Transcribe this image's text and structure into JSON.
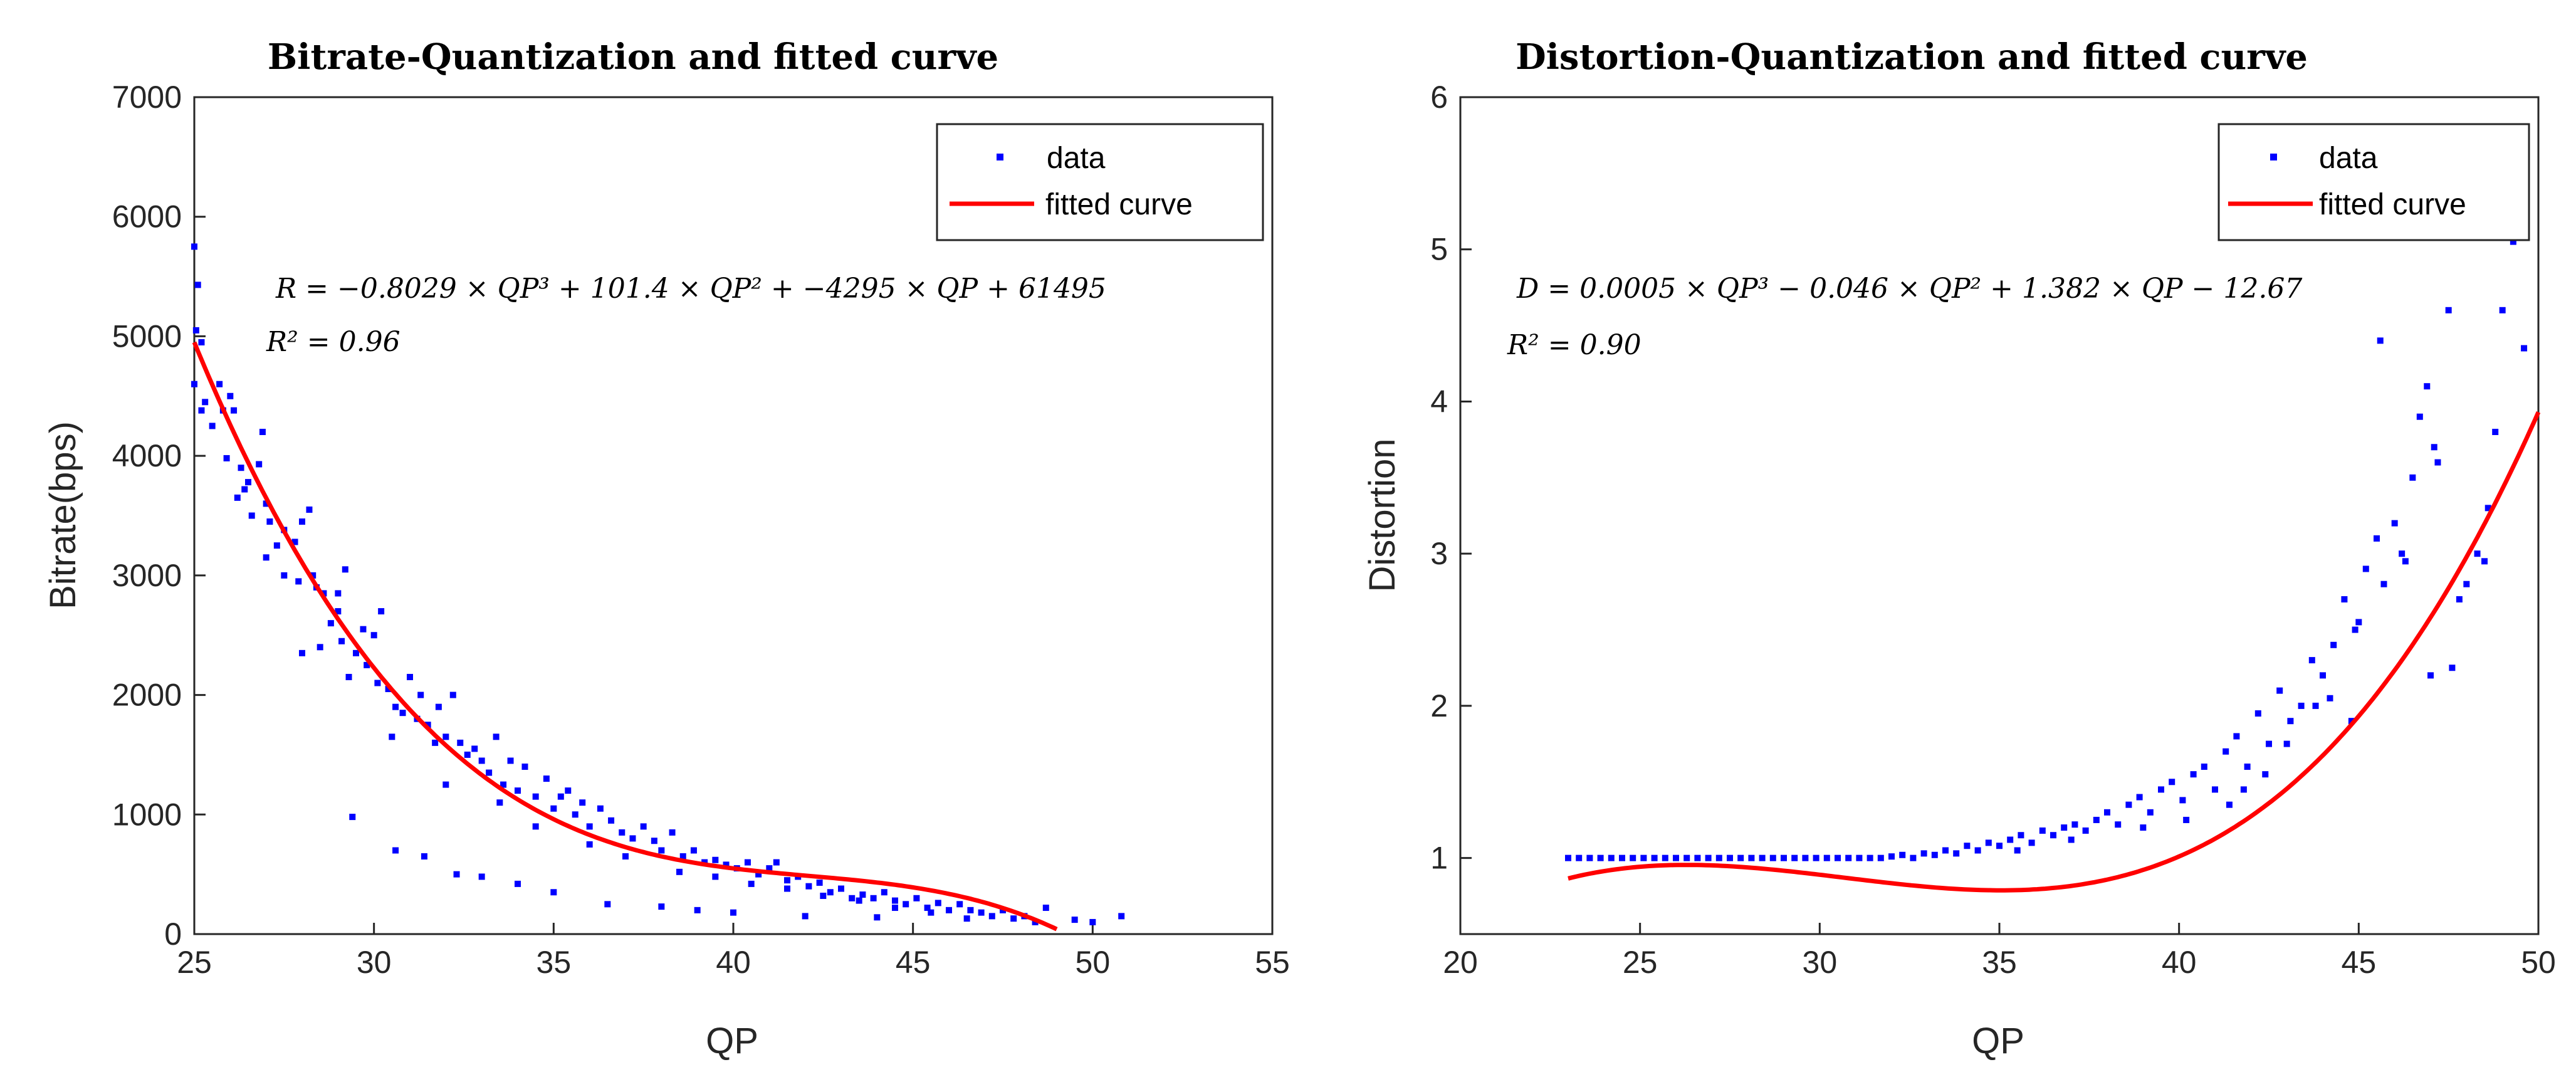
{
  "chart_data": [
    {
      "type": "scatter",
      "title": "Bitrate-Quantization and fitted curve",
      "xlabel": "QP",
      "ylabel": "Bitrate(bps)",
      "xlim": [
        25,
        55
      ],
      "ylim": [
        0,
        7000
      ],
      "xticks": [
        "25",
        "30",
        "35",
        "40",
        "45",
        "50",
        "55"
      ],
      "yticks": [
        "0",
        "1000",
        "2000",
        "3000",
        "4000",
        "5000",
        "6000",
        "7000"
      ],
      "legend": {
        "position": "top-right",
        "entries": [
          "data",
          "fitted curve"
        ]
      },
      "annotation_lines": [
        "R = −0.8029 × QP³ + 101.4 × QP² + −4295 × QP + 61495",
        "R² = 0.96"
      ],
      "series": [
        {
          "name": "data",
          "kind": "scatter",
          "color": "#0000ff",
          "points": [
            [
              25.0,
              5750
            ],
            [
              25.1,
              5430
            ],
            [
              25.05,
              5050
            ],
            [
              25.2,
              4950
            ],
            [
              25.0,
              4600
            ],
            [
              25.3,
              4450
            ],
            [
              25.2,
              4380
            ],
            [
              25.5,
              4250
            ],
            [
              25.7,
              4600
            ],
            [
              25.8,
              4380
            ],
            [
              26.0,
              4500
            ],
            [
              26.1,
              4380
            ],
            [
              25.9,
              3980
            ],
            [
              26.3,
              3900
            ],
            [
              26.4,
              3720
            ],
            [
              26.2,
              3650
            ],
            [
              26.5,
              3780
            ],
            [
              26.8,
              3930
            ],
            [
              27.0,
              3600
            ],
            [
              26.9,
              4200
            ],
            [
              27.1,
              3450
            ],
            [
              27.3,
              3250
            ],
            [
              27.0,
              3150
            ],
            [
              27.5,
              3380
            ],
            [
              27.8,
              3280
            ],
            [
              28.0,
              3450
            ],
            [
              28.2,
              3550
            ],
            [
              27.9,
              2950
            ],
            [
              28.4,
              2900
            ],
            [
              28.6,
              2850
            ],
            [
              28.0,
              2350
            ],
            [
              28.5,
              2400
            ],
            [
              28.8,
              2600
            ],
            [
              29.0,
              2850
            ],
            [
              29.2,
              3050
            ],
            [
              29.1,
              2450
            ],
            [
              29.3,
              2150
            ],
            [
              29.5,
              2350
            ],
            [
              29.7,
              2550
            ],
            [
              29.8,
              2250
            ],
            [
              30.0,
              2500
            ],
            [
              30.2,
              2700
            ],
            [
              30.1,
              2100
            ],
            [
              30.4,
              2050
            ],
            [
              30.6,
              1900
            ],
            [
              30.8,
              1850
            ],
            [
              30.5,
              1650
            ],
            [
              31.0,
              2150
            ],
            [
              31.2,
              1800
            ],
            [
              31.3,
              2000
            ],
            [
              31.5,
              1750
            ],
            [
              31.7,
              1600
            ],
            [
              31.8,
              1900
            ],
            [
              32.0,
              1650
            ],
            [
              32.2,
              2000
            ],
            [
              32.4,
              1600
            ],
            [
              32.6,
              1500
            ],
            [
              32.8,
              1550
            ],
            [
              33.0,
              1450
            ],
            [
              33.2,
              1350
            ],
            [
              33.4,
              1650
            ],
            [
              33.6,
              1250
            ],
            [
              33.8,
              1450
            ],
            [
              34.0,
              1200
            ],
            [
              34.2,
              1400
            ],
            [
              34.5,
              1150
            ],
            [
              34.8,
              1300
            ],
            [
              35.0,
              1050
            ],
            [
              35.2,
              1150
            ],
            [
              35.4,
              1200
            ],
            [
              35.6,
              1000
            ],
            [
              35.8,
              1100
            ],
            [
              36.0,
              900
            ],
            [
              36.3,
              1050
            ],
            [
              36.6,
              950
            ],
            [
              36.9,
              850
            ],
            [
              37.2,
              800
            ],
            [
              37.5,
              900
            ],
            [
              37.8,
              780
            ],
            [
              38.0,
              700
            ],
            [
              38.3,
              850
            ],
            [
              38.6,
              650
            ],
            [
              38.9,
              700
            ],
            [
              39.2,
              600
            ],
            [
              39.5,
              620
            ],
            [
              39.8,
              580
            ],
            [
              40.1,
              550
            ],
            [
              40.4,
              600
            ],
            [
              40.7,
              500
            ],
            [
              41.0,
              550
            ],
            [
              41.2,
              600
            ],
            [
              41.5,
              450
            ],
            [
              41.8,
              480
            ],
            [
              42.1,
              400
            ],
            [
              42.4,
              430
            ],
            [
              42.7,
              350
            ],
            [
              43.0,
              380
            ],
            [
              43.3,
              300
            ],
            [
              43.6,
              330
            ],
            [
              43.9,
              300
            ],
            [
              44.2,
              350
            ],
            [
              44.5,
              280
            ],
            [
              44.8,
              250
            ],
            [
              45.1,
              300
            ],
            [
              45.4,
              220
            ],
            [
              45.7,
              260
            ],
            [
              46.0,
              200
            ],
            [
              46.3,
              250
            ],
            [
              46.6,
              200
            ],
            [
              46.9,
              180
            ],
            [
              47.2,
              150
            ],
            [
              47.5,
              200
            ],
            [
              47.8,
              130
            ],
            [
              48.1,
              150
            ],
            [
              48.4,
              100
            ],
            [
              48.7,
              220
            ],
            [
              49.5,
              120
            ],
            [
              50.0,
              100
            ],
            [
              50.8,
              150
            ],
            [
              29.4,
              980
            ],
            [
              30.6,
              700
            ],
            [
              31.4,
              650
            ],
            [
              32.3,
              500
            ],
            [
              33.0,
              480
            ],
            [
              34.0,
              420
            ],
            [
              35.0,
              350
            ],
            [
              36.5,
              250
            ],
            [
              38.0,
              230
            ],
            [
              39.0,
              200
            ],
            [
              40.0,
              180
            ],
            [
              42.0,
              150
            ],
            [
              44.0,
              140
            ],
            [
              29.0,
              2700
            ],
            [
              27.5,
              3000
            ],
            [
              32.0,
              1250
            ],
            [
              34.5,
              900
            ],
            [
              37.0,
              650
            ],
            [
              39.5,
              480
            ],
            [
              41.5,
              380
            ],
            [
              43.5,
              280
            ],
            [
              45.5,
              180
            ],
            [
              46.5,
              130
            ],
            [
              26.6,
              3500
            ],
            [
              28.3,
              3000
            ],
            [
              33.5,
              1100
            ],
            [
              36.0,
              750
            ],
            [
              38.5,
              520
            ],
            [
              40.5,
              420
            ],
            [
              42.5,
              320
            ],
            [
              44.5,
              220
            ]
          ]
        },
        {
          "name": "fitted curve",
          "kind": "line",
          "color": "#ff0000",
          "coefficients": [
            -0.8029,
            101.4,
            -4295,
            61495
          ],
          "x_range": [
            25,
            49
          ]
        }
      ]
    },
    {
      "type": "scatter",
      "title": "Distortion-Quantization and fitted curve",
      "xlabel": "QP",
      "ylabel": "Distortion",
      "xlim": [
        20,
        50
      ],
      "ylim": [
        0.5,
        6
      ],
      "xticks": [
        "20",
        "25",
        "30",
        "35",
        "40",
        "45",
        "50"
      ],
      "yticks": [
        "1",
        "2",
        "3",
        "4",
        "5",
        "6"
      ],
      "legend": {
        "position": "top-right",
        "entries": [
          "data",
          "fitted curve"
        ]
      },
      "annotation_lines": [
        "D = 0.0005 × QP³ − 0.046 × QP² + 1.382 × QP − 12.67",
        "R² = 0.90"
      ],
      "series": [
        {
          "name": "data",
          "kind": "scatter",
          "color": "#0000ff",
          "points": [
            [
              23.0,
              1.0
            ],
            [
              23.3,
              1.0
            ],
            [
              23.6,
              1.0
            ],
            [
              23.9,
              1.0
            ],
            [
              24.2,
              1.0
            ],
            [
              24.5,
              1.0
            ],
            [
              24.8,
              1.0
            ],
            [
              25.1,
              1.0
            ],
            [
              25.4,
              1.0
            ],
            [
              25.7,
              1.0
            ],
            [
              26.0,
              1.0
            ],
            [
              26.3,
              1.0
            ],
            [
              26.6,
              1.0
            ],
            [
              26.9,
              1.0
            ],
            [
              27.2,
              1.0
            ],
            [
              27.5,
              1.0
            ],
            [
              27.8,
              1.0
            ],
            [
              28.1,
              1.0
            ],
            [
              28.4,
              1.0
            ],
            [
              28.7,
              1.0
            ],
            [
              29.0,
              1.0
            ],
            [
              29.3,
              1.0
            ],
            [
              29.6,
              1.0
            ],
            [
              29.9,
              1.0
            ],
            [
              30.2,
              1.0
            ],
            [
              30.5,
              1.0
            ],
            [
              30.8,
              1.0
            ],
            [
              31.1,
              1.0
            ],
            [
              31.4,
              1.0
            ],
            [
              31.7,
              1.0
            ],
            [
              32.0,
              1.01
            ],
            [
              32.3,
              1.02
            ],
            [
              32.6,
              1.0
            ],
            [
              32.9,
              1.03
            ],
            [
              33.2,
              1.02
            ],
            [
              33.5,
              1.05
            ],
            [
              33.8,
              1.03
            ],
            [
              34.1,
              1.08
            ],
            [
              34.4,
              1.05
            ],
            [
              34.7,
              1.1
            ],
            [
              35.0,
              1.08
            ],
            [
              35.3,
              1.12
            ],
            [
              35.6,
              1.15
            ],
            [
              35.9,
              1.1
            ],
            [
              36.2,
              1.18
            ],
            [
              36.5,
              1.15
            ],
            [
              36.8,
              1.2
            ],
            [
              37.1,
              1.22
            ],
            [
              37.4,
              1.18
            ],
            [
              37.7,
              1.25
            ],
            [
              38.0,
              1.3
            ],
            [
              38.3,
              1.22
            ],
            [
              38.6,
              1.35
            ],
            [
              38.9,
              1.4
            ],
            [
              39.2,
              1.3
            ],
            [
              39.5,
              1.45
            ],
            [
              39.8,
              1.5
            ],
            [
              40.1,
              1.38
            ],
            [
              40.4,
              1.55
            ],
            [
              40.7,
              1.6
            ],
            [
              41.0,
              1.45
            ],
            [
              41.3,
              1.7
            ],
            [
              41.6,
              1.8
            ],
            [
              41.9,
              1.6
            ],
            [
              42.2,
              1.95
            ],
            [
              42.5,
              1.75
            ],
            [
              42.8,
              2.1
            ],
            [
              43.1,
              1.9
            ],
            [
              43.4,
              2.0
            ],
            [
              43.7,
              2.3
            ],
            [
              44.0,
              2.2
            ],
            [
              44.3,
              2.4
            ],
            [
              44.6,
              2.7
            ],
            [
              44.9,
              2.5
            ],
            [
              45.2,
              2.9
            ],
            [
              45.5,
              3.1
            ],
            [
              45.7,
              2.8
            ],
            [
              46.0,
              3.2
            ],
            [
              46.2,
              3.0
            ],
            [
              46.5,
              3.5
            ],
            [
              46.7,
              3.9
            ],
            [
              46.9,
              4.1
            ],
            [
              47.1,
              3.7
            ],
            [
              47.5,
              4.6
            ],
            [
              47.8,
              2.7
            ],
            [
              48.0,
              2.8
            ],
            [
              48.3,
              3.0
            ],
            [
              48.6,
              3.3
            ],
            [
              48.8,
              3.8
            ],
            [
              49.0,
              4.6
            ],
            [
              49.3,
              5.05
            ],
            [
              45.6,
              4.4
            ],
            [
              44.8,
              1.9
            ],
            [
              43.8,
              2.0
            ],
            [
              42.4,
              1.55
            ],
            [
              41.4,
              1.35
            ],
            [
              40.2,
              1.25
            ],
            [
              47.0,
              2.2
            ],
            [
              47.6,
              2.25
            ],
            [
              48.5,
              2.95
            ],
            [
              44.2,
              2.05
            ],
            [
              45.0,
              2.55
            ],
            [
              46.3,
              2.95
            ],
            [
              47.2,
              3.6
            ],
            [
              49.6,
              4.35
            ],
            [
              43.0,
              1.75
            ],
            [
              41.8,
              1.45
            ],
            [
              39.0,
              1.2
            ],
            [
              37.0,
              1.12
            ],
            [
              35.5,
              1.05
            ]
          ]
        },
        {
          "name": "fitted curve",
          "kind": "line",
          "color": "#ff0000",
          "coefficients": [
            0.0005,
            -0.046,
            1.382,
            -12.67
          ],
          "x_range": [
            23,
            50
          ]
        }
      ]
    }
  ]
}
